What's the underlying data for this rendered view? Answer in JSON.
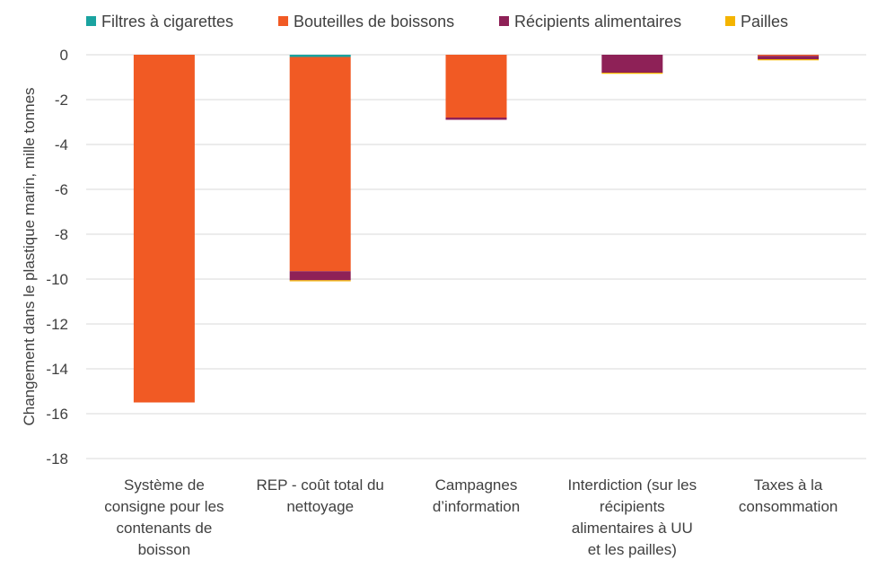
{
  "chart_data": {
    "type": "bar",
    "stacked": true,
    "title": "",
    "xlabel": "",
    "ylabel": "Changement dans le plastique marin, mille tonnes",
    "ylim": [
      -18,
      0
    ],
    "yticks": [
      0,
      -2,
      -4,
      -6,
      -8,
      -10,
      -12,
      -14,
      -16,
      -18
    ],
    "grid": true,
    "legend_position": "top",
    "categories": [
      [
        "Système de",
        "consigne pour les",
        "contenants de",
        "boisson"
      ],
      [
        "REP - coût total du",
        "nettoyage"
      ],
      [
        "Campagnes",
        "d’information"
      ],
      [
        "Interdiction (sur les",
        "récipients",
        "alimentaires à UU",
        "et les pailles)"
      ],
      [
        "Taxes à la",
        "consommation"
      ]
    ],
    "series": [
      {
        "name": "Filtres à cigarettes",
        "color": "#1aa3a0",
        "values": [
          0,
          -0.1,
          0,
          0,
          0
        ]
      },
      {
        "name": "Bouteilles de boissons",
        "color": "#f15a24",
        "values": [
          -15.5,
          -9.55,
          -2.8,
          0,
          -0.05
        ]
      },
      {
        "name": "Récipients alimentaires",
        "color": "#8e2157",
        "values": [
          0,
          -0.4,
          -0.1,
          -0.8,
          -0.15
        ]
      },
      {
        "name": "Pailles",
        "color": "#f4b400",
        "values": [
          0,
          -0.05,
          0,
          -0.05,
          -0.05
        ]
      }
    ]
  }
}
